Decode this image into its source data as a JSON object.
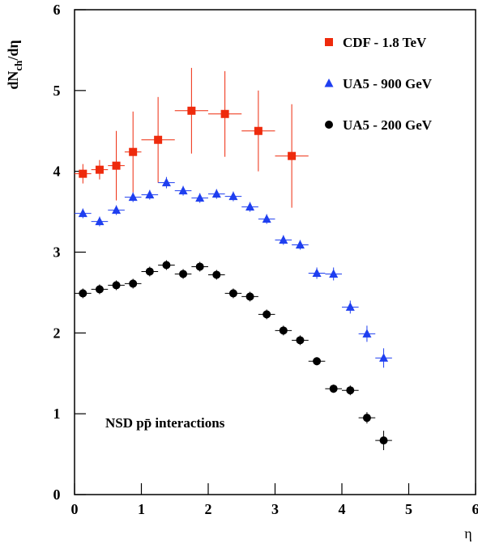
{
  "chart_data": {
    "type": "scatter",
    "ylabel": {
      "main": "dN",
      "sub": "ch",
      "rest": "/dη"
    },
    "xlabel": "η",
    "annotation": "NSD pp̄ interactions",
    "xlim": [
      0,
      6
    ],
    "xticks": [
      0,
      1,
      2,
      3,
      4,
      5,
      6
    ],
    "ylim": [
      0,
      6
    ],
    "yticks": [
      0,
      1,
      2,
      3,
      4,
      5,
      6
    ],
    "legend": "upper right",
    "series": [
      {
        "name": "CDF - 1.8 TeV",
        "color": "#ee2a0c",
        "marker": "square",
        "x": [
          0.125,
          0.375,
          0.625,
          0.875,
          1.25,
          1.75,
          2.25,
          2.75,
          3.25
        ],
        "xerr": [
          0.125,
          0.125,
          0.125,
          0.125,
          0.25,
          0.25,
          0.25,
          0.25,
          0.25
        ],
        "values": [
          3.97,
          4.02,
          4.07,
          4.24,
          4.39,
          4.75,
          4.71,
          4.5,
          4.19
        ],
        "errors": [
          0.12,
          0.12,
          0.43,
          0.5,
          0.53,
          0.53,
          0.53,
          0.5,
          0.64
        ]
      },
      {
        "name": "UA5 - 900 GeV",
        "color": "#1f3ff0",
        "marker": "triangle",
        "x": [
          0.125,
          0.375,
          0.625,
          0.875,
          1.125,
          1.375,
          1.625,
          1.875,
          2.125,
          2.375,
          2.625,
          2.875,
          3.125,
          3.375,
          3.625,
          3.875,
          4.125,
          4.375,
          4.625
        ],
        "xerr": [
          0.125,
          0.125,
          0.125,
          0.125,
          0.125,
          0.125,
          0.125,
          0.125,
          0.125,
          0.125,
          0.125,
          0.125,
          0.125,
          0.125,
          0.125,
          0.125,
          0.125,
          0.125,
          0.125
        ],
        "values": [
          3.48,
          3.38,
          3.52,
          3.68,
          3.71,
          3.86,
          3.76,
          3.67,
          3.72,
          3.69,
          3.56,
          3.41,
          3.15,
          3.09,
          2.74,
          2.73,
          2.32,
          1.99,
          1.69
        ],
        "errors": [
          0.06,
          0.06,
          0.06,
          0.06,
          0.06,
          0.07,
          0.06,
          0.06,
          0.06,
          0.06,
          0.06,
          0.06,
          0.06,
          0.06,
          0.07,
          0.08,
          0.08,
          0.1,
          0.12
        ]
      },
      {
        "name": "UA5 - 200 GeV",
        "color": "#000000",
        "marker": "circle",
        "x": [
          0.125,
          0.375,
          0.625,
          0.875,
          1.125,
          1.375,
          1.625,
          1.875,
          2.125,
          2.375,
          2.625,
          2.875,
          3.125,
          3.375,
          3.625,
          3.875,
          4.125,
          4.375,
          4.625
        ],
        "xerr": [
          0.125,
          0.125,
          0.125,
          0.125,
          0.125,
          0.125,
          0.125,
          0.125,
          0.125,
          0.125,
          0.125,
          0.125,
          0.125,
          0.125,
          0.125,
          0.125,
          0.125,
          0.125,
          0.125
        ],
        "values": [
          2.49,
          2.54,
          2.59,
          2.61,
          2.76,
          2.84,
          2.73,
          2.82,
          2.72,
          2.49,
          2.45,
          2.23,
          2.03,
          1.91,
          1.65,
          1.31,
          1.29,
          0.95,
          0.67
        ],
        "errors": [
          0.06,
          0.06,
          0.06,
          0.06,
          0.06,
          0.06,
          0.06,
          0.06,
          0.06,
          0.06,
          0.06,
          0.06,
          0.06,
          0.06,
          0.05,
          0.05,
          0.06,
          0.07,
          0.12
        ]
      }
    ]
  }
}
